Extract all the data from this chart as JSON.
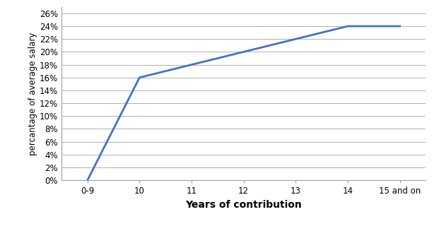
{
  "x_labels": [
    "0-9",
    "10",
    "11",
    "12",
    "13",
    "14",
    "15 and on"
  ],
  "x_positions": [
    0,
    1,
    2,
    3,
    4,
    5,
    6
  ],
  "y_values": [
    0.0,
    0.16,
    0.18,
    0.2,
    0.22,
    0.24,
    0.24
  ],
  "y_ticks": [
    0.0,
    0.02,
    0.04,
    0.06,
    0.08,
    0.1,
    0.12,
    0.14,
    0.16,
    0.18,
    0.2,
    0.22,
    0.24,
    0.26
  ],
  "ylabel": "percantage of average salary",
  "xlabel": "Years of contribution",
  "line_color": "#4472C4",
  "line_width": 2.0,
  "background_color": "#ffffff",
  "grid_color": "#b0b0b0",
  "ylim": [
    0.0,
    0.27
  ],
  "xlim": [
    -0.5,
    6.5
  ],
  "tick_fontsize": 8.5,
  "ylabel_fontsize": 8.5,
  "xlabel_fontsize": 10
}
